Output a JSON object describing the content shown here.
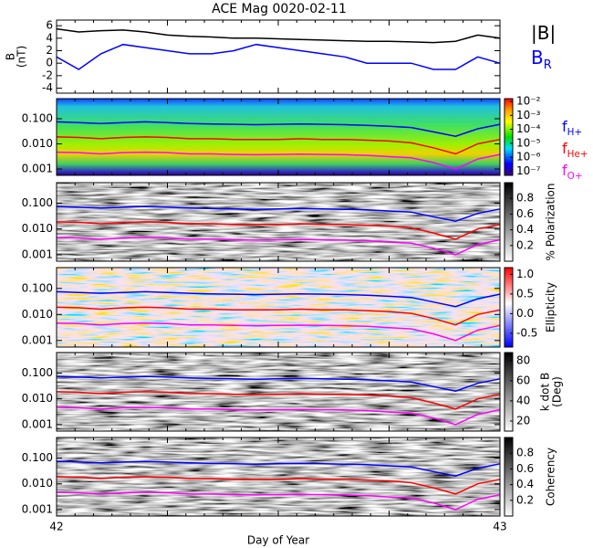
{
  "title": "ACE Mag 0020-02-11",
  "chart_data": [
    {
      "type": "line",
      "ylabel": [
        "B",
        "(nT)"
      ],
      "xlim": [
        42,
        43
      ],
      "ylim": [
        -4.8,
        6.9
      ],
      "yticks": [
        -4,
        -2,
        0,
        2,
        4,
        6
      ],
      "x": [
        42,
        42.05,
        42.1,
        42.15,
        42.2,
        42.25,
        42.3,
        42.35,
        42.4,
        42.45,
        42.5,
        42.55,
        42.6,
        42.65,
        42.7,
        42.75,
        42.8,
        42.85,
        42.9,
        42.95,
        43
      ],
      "series": [
        {
          "name": "|B|",
          "color": "#000000",
          "values": [
            5.5,
            5,
            5.2,
            5.3,
            5,
            4.5,
            4.3,
            4.2,
            4,
            4,
            3.9,
            3.8,
            3.7,
            3.6,
            3.5,
            3.5,
            3.4,
            3.3,
            3.5,
            4.5,
            4
          ]
        },
        {
          "name": "B",
          "subscript": "R",
          "color": "#0000ff",
          "values": [
            1,
            -1,
            1.5,
            3,
            2.5,
            2,
            1.5,
            1.5,
            2,
            3,
            2.5,
            2,
            1.5,
            1,
            0,
            0,
            0,
            -1,
            -1,
            1,
            0
          ]
        }
      ]
    },
    {
      "type": "line",
      "log": true,
      "background": "spectrum",
      "xlim": [
        42,
        43
      ],
      "ylim": [
        0.00056,
        0.63
      ],
      "yticks": [
        {
          "value": 0.001,
          "label": "0.001"
        },
        {
          "value": 0.01,
          "label": "0.010"
        },
        {
          "value": 0.1,
          "label": "0.100"
        }
      ],
      "colorbar": {
        "scale": "rainbow",
        "lim": [
          -7.3,
          -1.8
        ],
        "ticks": [
          {
            "value": -2,
            "label": "10⁻²"
          },
          {
            "value": -3,
            "label": "10⁻³"
          },
          {
            "value": -4,
            "label": "10⁻⁴"
          },
          {
            "value": -5,
            "label": "10⁻⁵"
          },
          {
            "value": -6,
            "label": "10⁻⁶"
          },
          {
            "value": -7,
            "label": "10⁻⁷"
          }
        ]
      },
      "x": [
        42,
        42.05,
        42.1,
        42.15,
        42.2,
        42.25,
        42.3,
        42.35,
        42.4,
        42.45,
        42.5,
        42.55,
        42.6,
        42.65,
        42.7,
        42.75,
        42.8,
        42.85,
        42.9,
        42.95,
        43
      ],
      "series": [
        {
          "name": "f",
          "subscript": "H+",
          "color": "#0000ff",
          "values": [
            0.075,
            0.07,
            0.065,
            0.07,
            0.075,
            0.07,
            0.065,
            0.062,
            0.06,
            0.058,
            0.06,
            0.062,
            0.06,
            0.058,
            0.055,
            0.05,
            0.045,
            0.03,
            0.02,
            0.04,
            0.06
          ]
        },
        {
          "name": "f",
          "subscript": "He+",
          "color": "#ff0000",
          "values": [
            0.019,
            0.018,
            0.016,
            0.018,
            0.019,
            0.018,
            0.016,
            0.016,
            0.015,
            0.015,
            0.015,
            0.016,
            0.015,
            0.015,
            0.014,
            0.013,
            0.011,
            0.007,
            0.004,
            0.01,
            0.015
          ]
        },
        {
          "name": "f",
          "subscript": "O+",
          "color": "#ff00ff",
          "values": [
            0.0047,
            0.0045,
            0.004,
            0.0045,
            0.0047,
            0.0045,
            0.004,
            0.004,
            0.0038,
            0.0037,
            0.0038,
            0.0039,
            0.0038,
            0.0037,
            0.0035,
            0.0031,
            0.0028,
            0.0018,
            0.001,
            0.0025,
            0.0038
          ]
        }
      ]
    },
    {
      "type": "line",
      "log": true,
      "background": "gray",
      "xlim": [
        42,
        43
      ],
      "ylim": [
        0.00056,
        0.63
      ],
      "yticks": [
        {
          "value": 0.001,
          "label": "0.001"
        },
        {
          "value": 0.01,
          "label": "0.010"
        },
        {
          "value": 0.1,
          "label": "0.100"
        }
      ],
      "colorbar": {
        "scale": "gray",
        "label": "% Polarization",
        "lim": [
          0,
          1
        ],
        "ticks": [
          0.2,
          0.4,
          0.6,
          0.8
        ]
      },
      "x": [
        42,
        42.05,
        42.1,
        42.15,
        42.2,
        42.25,
        42.3,
        42.35,
        42.4,
        42.45,
        42.5,
        42.55,
        42.6,
        42.65,
        42.7,
        42.75,
        42.8,
        42.85,
        42.9,
        42.95,
        43
      ],
      "series": [
        {
          "color": "#0000ff",
          "values": [
            0.075,
            0.07,
            0.065,
            0.07,
            0.075,
            0.07,
            0.065,
            0.062,
            0.06,
            0.058,
            0.06,
            0.062,
            0.06,
            0.058,
            0.055,
            0.05,
            0.045,
            0.03,
            0.02,
            0.04,
            0.06
          ]
        },
        {
          "color": "#ff0000",
          "values": [
            0.019,
            0.018,
            0.016,
            0.018,
            0.019,
            0.018,
            0.016,
            0.016,
            0.015,
            0.015,
            0.015,
            0.016,
            0.015,
            0.015,
            0.014,
            0.013,
            0.011,
            0.007,
            0.004,
            0.01,
            0.015
          ]
        },
        {
          "color": "#ff00ff",
          "values": [
            0.0047,
            0.0045,
            0.004,
            0.0045,
            0.0047,
            0.0045,
            0.004,
            0.004,
            0.0038,
            0.0037,
            0.0038,
            0.0039,
            0.0038,
            0.0037,
            0.0035,
            0.0031,
            0.0028,
            0.0018,
            0.001,
            0.0025,
            0.0038
          ]
        }
      ]
    },
    {
      "type": "line",
      "log": true,
      "background": "redblue",
      "xlim": [
        42,
        43
      ],
      "ylim": [
        0.00056,
        0.63
      ],
      "yticks": [
        {
          "value": 0.001,
          "label": "0.001"
        },
        {
          "value": 0.01,
          "label": "0.010"
        },
        {
          "value": 0.1,
          "label": "0.100"
        }
      ],
      "colorbar": {
        "scale": "redblue",
        "label": "Ellipticity",
        "lim": [
          -0.85,
          1.17
        ],
        "ticks": [
          -0.5,
          {
            "value": 0,
            "label": "0.0"
          },
          0.5,
          {
            "value": 1,
            "label": "1.0"
          }
        ]
      },
      "x": [
        42,
        42.05,
        42.1,
        42.15,
        42.2,
        42.25,
        42.3,
        42.35,
        42.4,
        42.45,
        42.5,
        42.55,
        42.6,
        42.65,
        42.7,
        42.75,
        42.8,
        42.85,
        42.9,
        42.95,
        43
      ],
      "series": [
        {
          "color": "#0000ff",
          "values": [
            0.075,
            0.07,
            0.065,
            0.07,
            0.075,
            0.07,
            0.065,
            0.062,
            0.06,
            0.058,
            0.06,
            0.062,
            0.06,
            0.058,
            0.055,
            0.05,
            0.045,
            0.03,
            0.02,
            0.04,
            0.06
          ]
        },
        {
          "color": "#ff0000",
          "values": [
            0.019,
            0.018,
            0.016,
            0.018,
            0.019,
            0.018,
            0.016,
            0.016,
            0.015,
            0.015,
            0.015,
            0.016,
            0.015,
            0.015,
            0.014,
            0.013,
            0.011,
            0.007,
            0.004,
            0.01,
            0.015
          ]
        },
        {
          "color": "#ff00ff",
          "values": [
            0.0047,
            0.0045,
            0.004,
            0.0045,
            0.0047,
            0.0045,
            0.004,
            0.004,
            0.0038,
            0.0037,
            0.0038,
            0.0039,
            0.0038,
            0.0037,
            0.0035,
            0.0031,
            0.0028,
            0.0018,
            0.001,
            0.0025,
            0.0038
          ]
        }
      ]
    },
    {
      "type": "line",
      "log": true,
      "background": "gray",
      "xlim": [
        42,
        43
      ],
      "ylim": [
        0.00056,
        0.63
      ],
      "yticks": [
        {
          "value": 0.001,
          "label": "0.001"
        },
        {
          "value": 0.01,
          "label": "0.010"
        },
        {
          "value": 0.1,
          "label": "0.100"
        }
      ],
      "colorbar": {
        "scale": "gray",
        "label": [
          "k dot B",
          "(Deg)"
        ],
        "lim": [
          10,
          88
        ],
        "ticks": [
          20,
          40,
          60,
          80
        ]
      },
      "x": [
        42,
        42.05,
        42.1,
        42.15,
        42.2,
        42.25,
        42.3,
        42.35,
        42.4,
        42.45,
        42.5,
        42.55,
        42.6,
        42.65,
        42.7,
        42.75,
        42.8,
        42.85,
        42.9,
        42.95,
        43
      ],
      "series": [
        {
          "color": "#0000ff",
          "values": [
            0.075,
            0.07,
            0.065,
            0.07,
            0.075,
            0.07,
            0.065,
            0.062,
            0.06,
            0.058,
            0.06,
            0.062,
            0.06,
            0.058,
            0.055,
            0.05,
            0.045,
            0.03,
            0.02,
            0.04,
            0.06
          ]
        },
        {
          "color": "#ff0000",
          "values": [
            0.019,
            0.018,
            0.016,
            0.018,
            0.019,
            0.018,
            0.016,
            0.016,
            0.015,
            0.015,
            0.015,
            0.016,
            0.015,
            0.015,
            0.014,
            0.013,
            0.011,
            0.007,
            0.004,
            0.01,
            0.015
          ]
        },
        {
          "color": "#ff00ff",
          "values": [
            0.0047,
            0.0045,
            0.004,
            0.0045,
            0.0047,
            0.0045,
            0.004,
            0.004,
            0.0038,
            0.0037,
            0.0038,
            0.0039,
            0.0038,
            0.0037,
            0.0035,
            0.0031,
            0.0028,
            0.0018,
            0.001,
            0.0025,
            0.0038
          ]
        }
      ]
    },
    {
      "type": "line",
      "log": true,
      "background": "gray",
      "xlim": [
        42,
        43
      ],
      "ylim": [
        0.00056,
        0.63
      ],
      "xticks": [
        42,
        43
      ],
      "xlabel": "Day of Year",
      "yticks": [
        {
          "value": 0.001,
          "label": "0.001"
        },
        {
          "value": 0.01,
          "label": "0.010"
        },
        {
          "value": 0.1,
          "label": "0.100"
        }
      ],
      "colorbar": {
        "scale": "gray",
        "label": "Coherency",
        "lim": [
          0,
          1
        ],
        "ticks": [
          0.2,
          0.4,
          0.6,
          0.8
        ]
      },
      "x": [
        42,
        42.05,
        42.1,
        42.15,
        42.2,
        42.25,
        42.3,
        42.35,
        42.4,
        42.45,
        42.5,
        42.55,
        42.6,
        42.65,
        42.7,
        42.75,
        42.8,
        42.85,
        42.9,
        42.95,
        43
      ],
      "series": [
        {
          "color": "#0000ff",
          "values": [
            0.075,
            0.07,
            0.065,
            0.07,
            0.075,
            0.07,
            0.065,
            0.062,
            0.06,
            0.058,
            0.06,
            0.062,
            0.06,
            0.058,
            0.055,
            0.05,
            0.045,
            0.03,
            0.02,
            0.04,
            0.06
          ]
        },
        {
          "color": "#ff0000",
          "values": [
            0.019,
            0.018,
            0.016,
            0.018,
            0.019,
            0.018,
            0.016,
            0.016,
            0.015,
            0.015,
            0.015,
            0.016,
            0.015,
            0.015,
            0.014,
            0.013,
            0.011,
            0.007,
            0.004,
            0.01,
            0.015
          ]
        },
        {
          "color": "#ff00ff",
          "values": [
            0.0047,
            0.0045,
            0.004,
            0.0045,
            0.0047,
            0.0045,
            0.004,
            0.004,
            0.0038,
            0.0037,
            0.0038,
            0.0039,
            0.0038,
            0.0037,
            0.0035,
            0.0031,
            0.0028,
            0.0018,
            0.001,
            0.0025,
            0.0038
          ]
        }
      ]
    }
  ]
}
